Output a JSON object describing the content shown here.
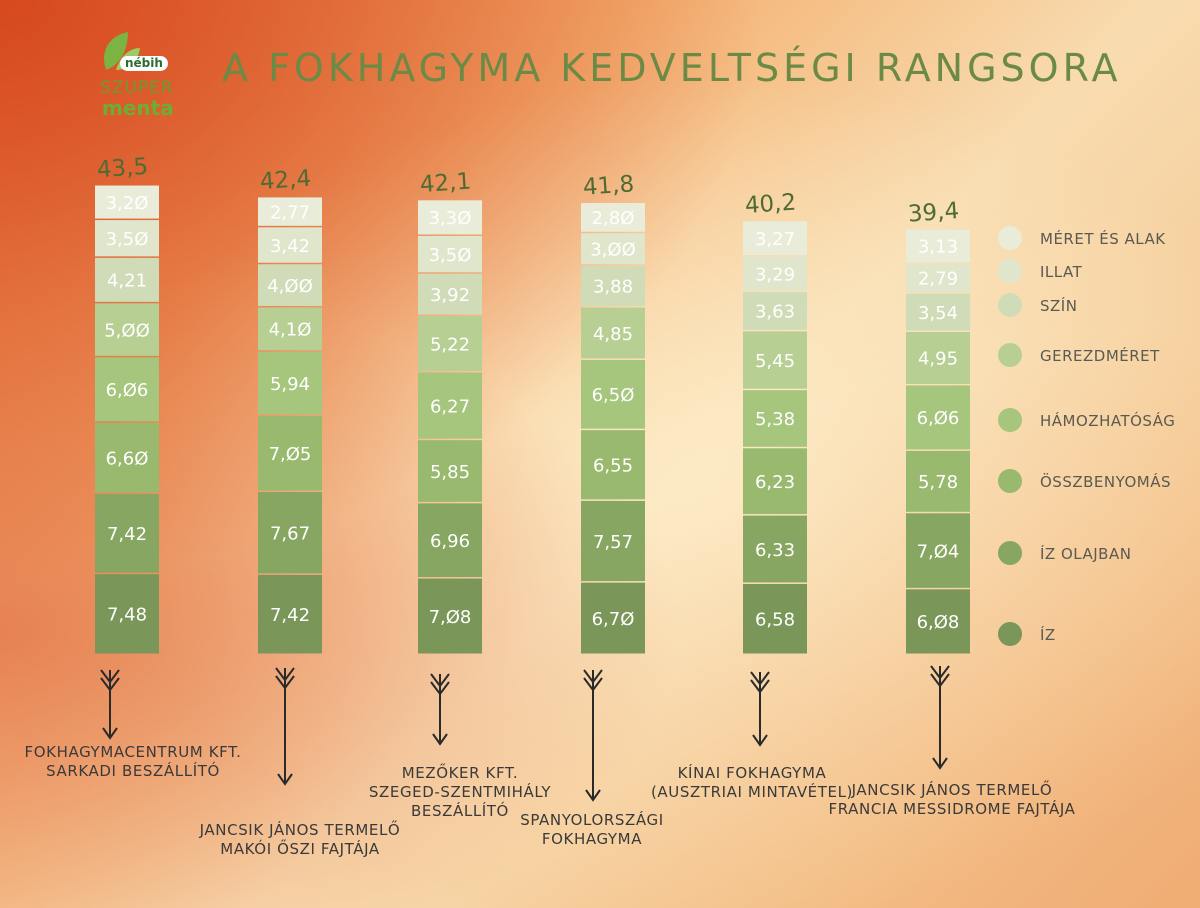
{
  "logo": {
    "nebih": "nébih",
    "szuper": "SZUPER",
    "menta": "menta"
  },
  "title": "A FOKHAGYMA KEDVELTSÉGI RANGSORA",
  "colors": {
    "segments": [
      "#e9ecd9",
      "#dfe6cc",
      "#d0dcb7",
      "#b8cf94",
      "#a6c57d",
      "#98b96e",
      "#87a661",
      "#7a9659"
    ],
    "total_text": "#4e6b33",
    "legend_text": "#5a5a52"
  },
  "chart_data": {
    "type": "bar",
    "stacked": true,
    "title": "A FOKHAGYMA KEDVELTSÉGI RANGSORA",
    "legend_position": "right",
    "categories": [
      [
        "FOKHAGYMACENTRUM KFT.",
        "SARKADI BESZÁLLÍTÓ"
      ],
      [
        "JANCSIK JÁNOS TERMELŐ",
        "MAKÓI ŐSZI FAJTÁJA"
      ],
      [
        "MEZŐKER KFT.",
        "SZEGED-SZENTMIHÁLY",
        "BESZÁLLÍTÓ"
      ],
      [
        "SPANYOLORSZÁGI",
        "FOKHAGYMA"
      ],
      [
        "KÍNAI FOKHAGYMA",
        "(AUSZTRIAI MINTAVÉTEL)"
      ],
      [
        "JANCSIK JÁNOS TERMELŐ",
        "FRANCIA MESSIDROME FAJTÁJA"
      ]
    ],
    "totals": [
      "43,5",
      "42,4",
      "42,1",
      "41,8",
      "40,2",
      "39,4"
    ],
    "series": [
      {
        "name": "MÉRET ÉS ALAK",
        "values": [
          3.2,
          2.77,
          3.3,
          2.8,
          3.27,
          3.13
        ],
        "labels": [
          "3,2Ø",
          "2,77",
          "3,3Ø",
          "2,8Ø",
          "3,27",
          "3,13"
        ]
      },
      {
        "name": "ILLAT",
        "values": [
          3.5,
          3.42,
          3.5,
          3.0,
          3.29,
          2.79
        ],
        "labels": [
          "3,5Ø",
          "3,42",
          "3,5Ø",
          "3,ØØ",
          "3,29",
          "2,79"
        ]
      },
      {
        "name": "SZÍN",
        "values": [
          4.21,
          4.0,
          3.92,
          3.88,
          3.63,
          3.54
        ],
        "labels": [
          "4,21",
          "4,ØØ",
          "3,92",
          "3,88",
          "3,63",
          "3,54"
        ]
      },
      {
        "name": "GEREZDMÉRET",
        "values": [
          5.0,
          4.1,
          5.22,
          4.85,
          5.45,
          4.95
        ],
        "labels": [
          "5,ØØ",
          "4,1Ø",
          "5,22",
          "4,85",
          "5,45",
          "4,95"
        ]
      },
      {
        "name": "HÁMOZHATÓSÁG",
        "values": [
          6.06,
          5.94,
          6.27,
          6.5,
          5.38,
          6.06
        ],
        "labels": [
          "6,Ø6",
          "5,94",
          "6,27",
          "6,5Ø",
          "5,38",
          "6,Ø6"
        ]
      },
      {
        "name": "ÖSSZBENYOMÁS",
        "values": [
          6.6,
          7.05,
          5.85,
          6.55,
          6.23,
          5.78
        ],
        "labels": [
          "6,6Ø",
          "7,Ø5",
          "5,85",
          "6,55",
          "6,23",
          "5,78"
        ]
      },
      {
        "name": "ÍZ OLAJBAN",
        "values": [
          7.42,
          7.67,
          6.96,
          7.57,
          6.33,
          7.04
        ],
        "labels": [
          "7,42",
          "7,67",
          "6,96",
          "7,57",
          "6,33",
          "7,Ø4"
        ]
      },
      {
        "name": "ÍZ",
        "values": [
          7.48,
          7.42,
          7.08,
          6.7,
          6.58,
          6.08
        ],
        "labels": [
          "7,48",
          "7,42",
          "7,Ø8",
          "6,7Ø",
          "6,58",
          "6,Ø8"
        ]
      }
    ]
  }
}
